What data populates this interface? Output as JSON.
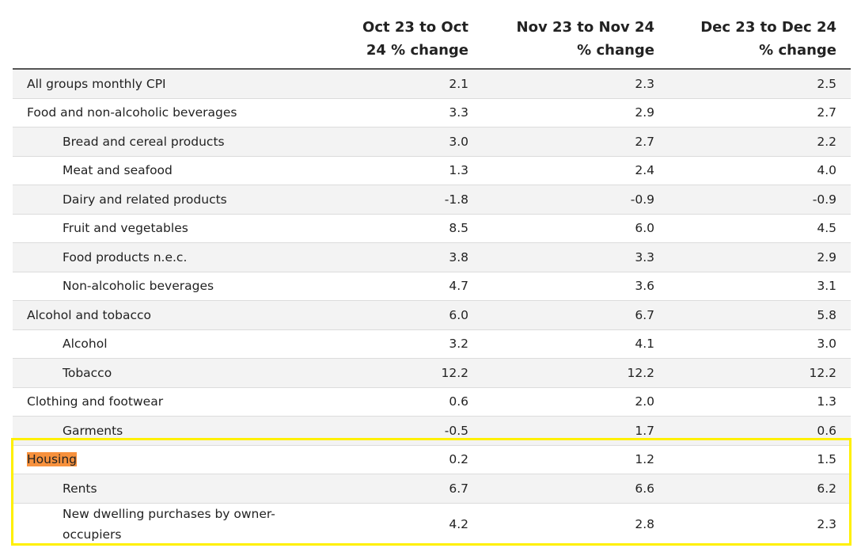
{
  "table": {
    "headers": [
      "Oct 23 to Oct 24 % change",
      "Nov 23 to Nov 24 % change",
      "Dec 23 to Dec 24 % change"
    ],
    "groups": [
      {
        "label": "All groups monthly CPI",
        "values": [
          "2.1",
          "2.3",
          "2.5"
        ],
        "children": []
      },
      {
        "label": "Food and non-alcoholic beverages",
        "values": [
          "3.3",
          "2.9",
          "2.7"
        ],
        "children": [
          {
            "label": "Bread and cereal products",
            "values": [
              "3.0",
              "2.7",
              "2.2"
            ]
          },
          {
            "label": "Meat and seafood",
            "values": [
              "1.3",
              "2.4",
              "4.0"
            ]
          },
          {
            "label": "Dairy and related products",
            "values": [
              "-1.8",
              "-0.9",
              "-0.9"
            ]
          },
          {
            "label": "Fruit and vegetables",
            "values": [
              "8.5",
              "6.0",
              "4.5"
            ]
          },
          {
            "label": "Food products n.e.c.",
            "values": [
              "3.8",
              "3.3",
              "2.9"
            ]
          },
          {
            "label": "Non-alcoholic beverages",
            "values": [
              "4.7",
              "3.6",
              "3.1"
            ]
          }
        ]
      },
      {
        "label": "Alcohol and tobacco",
        "values": [
          "6.0",
          "6.7",
          "5.8"
        ],
        "children": [
          {
            "label": "Alcohol",
            "values": [
              "3.2",
              "4.1",
              "3.0"
            ]
          },
          {
            "label": "Tobacco",
            "values": [
              "12.2",
              "12.2",
              "12.2"
            ]
          }
        ]
      },
      {
        "label": "Clothing and footwear",
        "values": [
          "0.6",
          "2.0",
          "1.3"
        ],
        "children": [
          {
            "label": "Garments",
            "values": [
              "-0.5",
              "1.7",
              "0.6"
            ]
          }
        ]
      },
      {
        "label": "Housing",
        "highlighted": true,
        "values": [
          "0.2",
          "1.2",
          "1.5"
        ],
        "children": [
          {
            "label": "Rents",
            "values": [
              "6.7",
              "6.6",
              "6.2"
            ]
          },
          {
            "label": "New dwelling purchases by owner-occupiers",
            "values": [
              "4.2",
              "2.8",
              "2.3"
            ]
          }
        ]
      }
    ]
  }
}
